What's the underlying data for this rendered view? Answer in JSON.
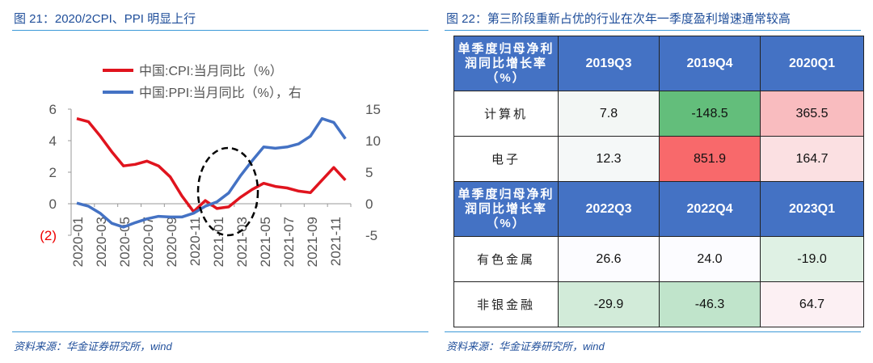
{
  "left": {
    "title": "图 21：2020/2CPI、PPI 明显上行",
    "source": "资料来源：华金证券研究所，wind"
  },
  "right": {
    "title": "图 22：第三阶段重新占优的行业在次年一季度盈利增速通常较高",
    "source": "资料来源：华金证券研究所，wind",
    "tables": [
      {
        "header_label": "单季度归母净利润同比增长率（%）",
        "columns": [
          "2019Q3",
          "2019Q4",
          "2020Q1"
        ],
        "rows": [
          {
            "label": "计算机",
            "values": [
              "7.8",
              "-148.5",
              "365.5"
            ],
            "colors": [
              "#f3f7f5",
              "#63be7b",
              "#f9bcbf"
            ]
          },
          {
            "label": "电子",
            "values": [
              "12.3",
              "851.9",
              "164.7"
            ],
            "colors": [
              "#f5f8f8",
              "#f8696b",
              "#fbe0e2"
            ]
          }
        ]
      },
      {
        "header_label": "单季度归母净利润同比增长率（%）",
        "columns": [
          "2022Q3",
          "2022Q4",
          "2023Q1"
        ],
        "rows": [
          {
            "label": "有色金属",
            "values": [
              "26.6",
              "24.0",
              "-19.0"
            ],
            "colors": [
              "#fcfcff",
              "#fcfcff",
              "#dff1e4"
            ]
          },
          {
            "label": "非银金融",
            "values": [
              "-29.9",
              "-46.3",
              "64.7"
            ],
            "colors": [
              "#d2ebd9",
              "#c0e4cb",
              "#fcf0f3"
            ]
          }
        ]
      }
    ],
    "header_color": "#4472c4"
  },
  "chart_data": {
    "type": "line",
    "x": [
      "2020-01",
      "2020-02",
      "2020-03",
      "2020-04",
      "2020-05",
      "2020-06",
      "2020-07",
      "2020-08",
      "2020-09",
      "2020-10",
      "2020-11",
      "2020-12",
      "2021-01",
      "2021-02",
      "2021-03",
      "2021-04",
      "2021-05",
      "2021-06",
      "2021-07",
      "2021-08",
      "2021-09",
      "2021-10",
      "2021-11",
      "2021-12"
    ],
    "x_tick_labels": [
      "2020-01",
      "2020-03",
      "2020-05",
      "2020-07",
      "2020-09",
      "2020-11",
      "2021-01",
      "2021-03",
      "2021-05",
      "2021-07",
      "2021-09",
      "2021-11"
    ],
    "series": [
      {
        "name": "中国:CPI:当月同比（%）",
        "axis": "left",
        "color": "#e0141e",
        "values": [
          5.4,
          5.2,
          4.3,
          3.3,
          2.4,
          2.5,
          2.7,
          2.4,
          1.7,
          0.5,
          -0.5,
          0.2,
          -0.3,
          -0.2,
          0.4,
          0.9,
          1.3,
          1.1,
          1.0,
          0.8,
          0.7,
          1.5,
          2.3,
          1.5
        ]
      },
      {
        "name": "中国:PPI:当月同比（%），右",
        "axis": "right",
        "color": "#4472c4",
        "values": [
          0.1,
          -0.4,
          -1.5,
          -3.1,
          -3.7,
          -3.0,
          -2.4,
          -2.0,
          -2.1,
          -2.1,
          -1.5,
          -0.4,
          0.3,
          1.7,
          4.4,
          6.8,
          9.0,
          8.8,
          9.0,
          9.5,
          10.7,
          13.5,
          12.9,
          10.3
        ]
      }
    ],
    "y_left": {
      "ylim": [
        -2,
        6
      ],
      "ticks": [
        "(2)",
        "0",
        "2",
        "4",
        "6"
      ],
      "tick_values": [
        -2,
        0,
        2,
        4,
        6
      ]
    },
    "y_right": {
      "ylim": [
        -5,
        15
      ],
      "ticks": [
        "-5",
        "0",
        "5",
        "10",
        "15"
      ],
      "tick_values": [
        -5,
        0,
        5,
        10,
        15
      ]
    },
    "legend_placement": "top",
    "annotation": "dashed ellipse around 2020-12 to 2021-04",
    "grid": false
  }
}
